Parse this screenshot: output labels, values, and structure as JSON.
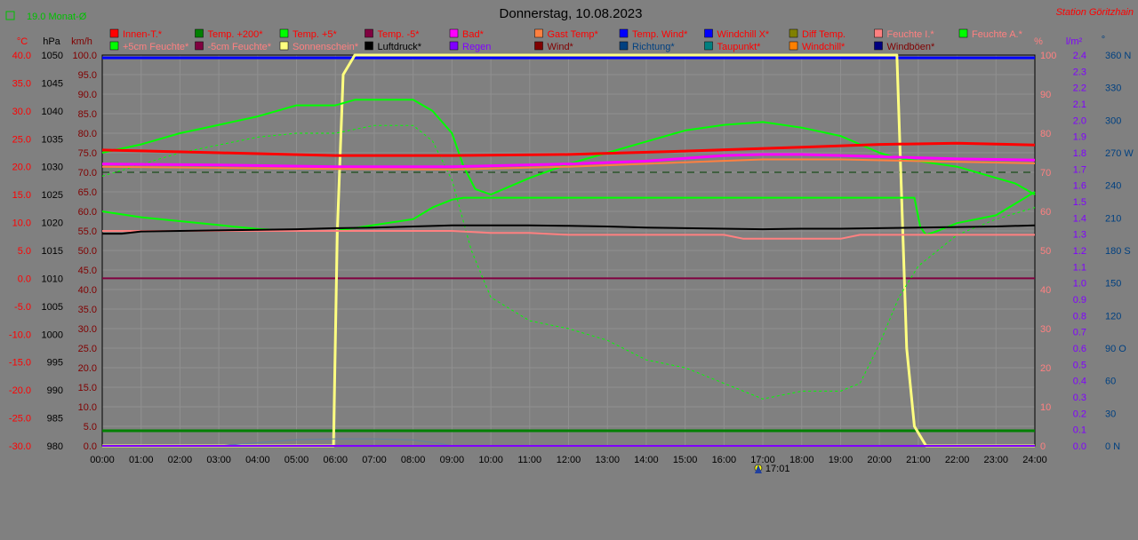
{
  "header": {
    "title": "Donnerstag, 10.08.2023",
    "station": "Station Göritzhain",
    "monthly_avg": "19.0 Monat-Ø"
  },
  "axis_units": {
    "temp": "°C",
    "pressure": "hPa",
    "wind": "km/h",
    "humidity": "%",
    "rain": "l/m²",
    "direction": "°"
  },
  "legend": [
    {
      "label": "Innen-T.*",
      "color": "#ff0000",
      "text_color": "#ff0000"
    },
    {
      "label": "Temp. +200*",
      "color": "#008000",
      "text_color": "#ff0000"
    },
    {
      "label": "Temp. +5*",
      "color": "#00ff00",
      "text_color": "#ff0000"
    },
    {
      "label": "Temp. -5*",
      "color": "#800040",
      "text_color": "#ff0000"
    },
    {
      "label": "Bad*",
      "color": "#ff00ff",
      "text_color": "#ff0000"
    },
    {
      "label": "Gast Temp*",
      "color": "#ff8040",
      "text_color": "#ff0000"
    },
    {
      "label": "Temp. Wind*",
      "color": "#0000ff",
      "text_color": "#ff0000"
    },
    {
      "label": "Windchill X*",
      "color": "#0000ff",
      "text_color": "#ff0000"
    },
    {
      "label": "Diff Temp.",
      "color": "#808000",
      "text_color": "#ff0000"
    },
    {
      "label": "Feuchte I.*",
      "color": "#ff8080",
      "text_color": "#ff8080"
    },
    {
      "label": "Feuchte A.*",
      "color": "#00ff00",
      "text_color": "#ff8080"
    },
    {
      "label": "+5cm Feuchte*",
      "color": "#00ff00",
      "text_color": "#ff8080"
    },
    {
      "label": "-5cm Feuchte*",
      "color": "#800040",
      "text_color": "#ff8080"
    },
    {
      "label": "Sonnenschein*",
      "color": "#ffff80",
      "text_color": "#ff8080"
    },
    {
      "label": "Luftdruck*",
      "color": "#000000",
      "text_color": "#000000"
    },
    {
      "label": "Regen",
      "color": "#8000ff",
      "text_color": "#8000ff"
    },
    {
      "label": "Wind*",
      "color": "#800000",
      "text_color": "#800000"
    },
    {
      "label": "Richtung*",
      "color": "#004080",
      "text_color": "#004080"
    },
    {
      "label": "Taupunkt*",
      "color": "#008080",
      "text_color": "#ff0000"
    },
    {
      "label": "Windchill*",
      "color": "#ff8000",
      "text_color": "#ff0000"
    },
    {
      "label": "Windböen*",
      "color": "#000080",
      "text_color": "#800000"
    }
  ],
  "sun_marker": {
    "label": "17:01",
    "hour": 17.02
  },
  "chart_data": {
    "type": "line",
    "x_unit": "hour of day",
    "x_ticks": [
      "00:00",
      "01:00",
      "02:00",
      "03:00",
      "04:00",
      "05:00",
      "06:00",
      "07:00",
      "08:00",
      "09:00",
      "10:00",
      "11:00",
      "12:00",
      "13:00",
      "14:00",
      "15:00",
      "16:00",
      "17:00",
      "18:00",
      "19:00",
      "20:00",
      "21:00",
      "22:00",
      "23:00",
      "24:00"
    ],
    "xlim": [
      0,
      24
    ],
    "axes": {
      "temp": {
        "range": [
          -30,
          40
        ],
        "ticks": [
          "40.0",
          "35.0",
          "30.0",
          "25.0",
          "20.0",
          "15.0",
          "10.0",
          "5.0",
          "0.0",
          "-5.0",
          "-10.0",
          "-15.0",
          "-20.0",
          "-25.0",
          "-30.0"
        ]
      },
      "pressure": {
        "range": [
          980,
          1050
        ],
        "ticks": [
          "1050",
          "1045",
          "1040",
          "1035",
          "1030",
          "1025",
          "1020",
          "1015",
          "1010",
          "1005",
          "1000",
          "995",
          "990",
          "985",
          "980"
        ]
      },
      "wind": {
        "range": [
          0,
          100
        ],
        "ticks": [
          "100.0",
          "95.0",
          "90.0",
          "85.0",
          "80.0",
          "75.0",
          "70.0",
          "65.0",
          "60.0",
          "55.0",
          "50.0",
          "45.0",
          "40.0",
          "35.0",
          "30.0",
          "25.0",
          "20.0",
          "15.0",
          "10.0",
          "5.0",
          "0.0"
        ]
      },
      "humidity": {
        "range": [
          0,
          100
        ],
        "ticks": [
          "100",
          "90",
          "80",
          "70",
          "60",
          "50",
          "40",
          "30",
          "20",
          "10",
          "0"
        ]
      },
      "rain": {
        "range": [
          0,
          2.5
        ],
        "ticks": [
          "2.4",
          "2.3",
          "2.2",
          "2.1",
          "2.0",
          "1.9",
          "1.8",
          "1.7",
          "1.6",
          "1.5",
          "1.4",
          "1.3",
          "1.2",
          "1.1",
          "1.0",
          "0.9",
          "0.8",
          "0.7",
          "0.6",
          "0.5",
          "0.4",
          "0.3",
          "0.2",
          "0.1",
          "0.0"
        ]
      },
      "direction": {
        "range": [
          0,
          360
        ],
        "ticks": [
          "360 N",
          "330",
          "300",
          "270 W",
          "240",
          "210",
          "180 S",
          "150",
          "120",
          "90 O",
          "60",
          "30",
          "0 N"
        ]
      }
    },
    "series": [
      {
        "name": "Windchill X*",
        "axis": "temp",
        "color": "#0000ff",
        "width": 3,
        "x": [
          0,
          24
        ],
        "y": [
          39.5,
          39.5
        ]
      },
      {
        "name": "Temp. +200*",
        "axis": "temp",
        "color": "#008000",
        "width": 3,
        "x": [
          0,
          24
        ],
        "y": [
          -27.3,
          -27.3
        ]
      },
      {
        "name": "Temp. -5*",
        "axis": "temp",
        "color": "#800040",
        "width": 2,
        "x": [
          0,
          24
        ],
        "y": [
          0.0,
          0.0
        ]
      },
      {
        "name": "Diff Temp.",
        "axis": "temp",
        "color": "#004000",
        "width": 1,
        "dash": "8,6",
        "x": [
          0,
          24
        ],
        "y": [
          19.0,
          19.0
        ]
      },
      {
        "name": "Sonnenschein*",
        "axis": "humidity",
        "color": "#ffff80",
        "width": 3,
        "x": [
          0,
          5.95,
          6.05,
          6.2,
          6.5,
          20.45,
          20.55,
          20.7,
          20.9,
          21.2,
          24
        ],
        "y": [
          0,
          0,
          55,
          95,
          100,
          100,
          70,
          25,
          5,
          0,
          0
        ]
      },
      {
        "name": "Temp. +5*",
        "axis": "temp",
        "color": "#00ff00",
        "width": 2,
        "x": [
          0,
          1,
          2,
          3,
          4,
          5,
          5.5,
          6,
          6.5,
          7,
          7.5,
          8,
          8.5,
          9,
          9.3,
          9.6,
          10,
          11,
          12,
          13,
          14,
          15,
          16,
          17,
          18,
          19,
          20,
          20.5,
          21,
          22,
          23,
          23.5,
          24
        ],
        "y": [
          22.5,
          24.0,
          26.0,
          27.5,
          29.0,
          31.0,
          31.0,
          31.0,
          32.0,
          32.0,
          32.0,
          32.0,
          30.0,
          26.0,
          20.0,
          16.0,
          15.0,
          18.0,
          20.5,
          22.5,
          24.5,
          26.5,
          27.5,
          28.0,
          27.0,
          25.5,
          22.5,
          21.5,
          21.0,
          20.0,
          18.0,
          17.0,
          15.0
        ]
      },
      {
        "name": "Feuchte A.*",
        "axis": "humidity",
        "color": "#00ff00",
        "width": 1,
        "dash": "3,3",
        "x": [
          0,
          1,
          2,
          3,
          4,
          5,
          6,
          7,
          8,
          8.5,
          9,
          9.5,
          10,
          11,
          12,
          13,
          14,
          15,
          16,
          17,
          18,
          19,
          19.5,
          20,
          20.5,
          21,
          22,
          23,
          24
        ],
        "y": [
          69,
          72,
          75,
          77,
          79,
          80,
          80,
          82,
          82,
          78,
          68,
          50,
          38,
          32,
          30,
          27,
          22,
          20,
          16,
          12,
          14,
          14,
          16,
          26,
          38,
          46,
          54,
          58,
          61
        ]
      },
      {
        "name": "+5cm Feuchte*",
        "axis": "humidity",
        "color": "#00ff00",
        "width": 2,
        "x": [
          0,
          1,
          2,
          3,
          4,
          5,
          5.5,
          6,
          7,
          8,
          8.5,
          9,
          9.3,
          9.5,
          10,
          11,
          12,
          13,
          14,
          15,
          16,
          17,
          18,
          19,
          20,
          20.5,
          20.9,
          21.05,
          21.2,
          21.5,
          22,
          23,
          24
        ],
        "y": [
          60,
          58.5,
          57.5,
          56.5,
          55.5,
          55,
          55,
          55,
          56.5,
          58,
          61,
          63,
          63.5,
          63.5,
          63.5,
          63.5,
          63.5,
          63.5,
          63.5,
          63.5,
          63.5,
          63.5,
          63.5,
          63.5,
          63.5,
          63.5,
          63.5,
          56,
          54,
          55,
          57,
          59,
          65
        ]
      },
      {
        "name": "Innen-T.*",
        "axis": "temp",
        "color": "#ff0000",
        "width": 3,
        "x": [
          0,
          3,
          6,
          9,
          12,
          15,
          18,
          20,
          22,
          24
        ],
        "y": [
          23.0,
          22.5,
          22.0,
          22.0,
          22.2,
          22.8,
          23.5,
          24.0,
          24.2,
          23.9
        ]
      },
      {
        "name": "Bad*",
        "axis": "temp",
        "color": "#ff00ff",
        "width": 3,
        "x": [
          0,
          3,
          6,
          9,
          12,
          14,
          16,
          17,
          18,
          20,
          22,
          24
        ],
        "y": [
          20.5,
          20.3,
          20.0,
          20.0,
          20.5,
          21.0,
          22.0,
          22.2,
          22.2,
          21.8,
          21.4,
          21.2
        ]
      },
      {
        "name": "Gast Temp*",
        "axis": "temp",
        "color": "#ff8040",
        "width": 2,
        "x": [
          0,
          3,
          6,
          9,
          12,
          15,
          17,
          19,
          21,
          24
        ],
        "y": [
          20.0,
          19.8,
          19.6,
          19.5,
          20.0,
          20.8,
          21.3,
          21.3,
          21.0,
          20.6
        ]
      },
      {
        "name": "Feuchte I.*",
        "axis": "humidity",
        "color": "#ff8080",
        "width": 2,
        "x": [
          0,
          5,
          9,
          10,
          11,
          12,
          15,
          16,
          16.5,
          18,
          19,
          19.5,
          20,
          22,
          24
        ],
        "y": [
          55,
          55,
          55,
          54.5,
          54.5,
          54,
          54,
          54,
          53,
          53,
          53,
          54,
          54,
          54,
          54
        ]
      },
      {
        "name": "Luftdruck*",
        "axis": "pressure",
        "color": "#000000",
        "width": 2,
        "x": [
          0,
          0.5,
          1,
          2,
          3,
          4,
          5,
          6,
          7,
          8,
          9,
          10,
          11,
          12,
          13,
          14,
          15,
          16,
          17,
          18,
          19,
          20,
          21,
          22,
          23,
          24
        ],
        "y": [
          1018.0,
          1018.0,
          1018.4,
          1018.5,
          1018.6,
          1018.7,
          1018.8,
          1019.0,
          1019.1,
          1019.3,
          1019.5,
          1019.5,
          1019.5,
          1019.4,
          1019.3,
          1019.1,
          1019.0,
          1018.9,
          1018.8,
          1018.9,
          1018.9,
          1019.0,
          1019.1,
          1019.2,
          1019.3,
          1019.5
        ]
      },
      {
        "name": "Richtung*",
        "axis": "humidity",
        "color": "#6080a0",
        "width": 1,
        "x": [
          0,
          3,
          4,
          5,
          6,
          7,
          8,
          8.7,
          9,
          24
        ],
        "y": [
          0,
          0,
          0.8,
          1.6,
          1.8,
          1.8,
          1.5,
          0.6,
          0,
          0
        ]
      },
      {
        "name": "Regen",
        "axis": "rain",
        "color": "#8000ff",
        "width": 2,
        "x": [
          0,
          24
        ],
        "y": [
          0,
          0
        ]
      }
    ]
  }
}
